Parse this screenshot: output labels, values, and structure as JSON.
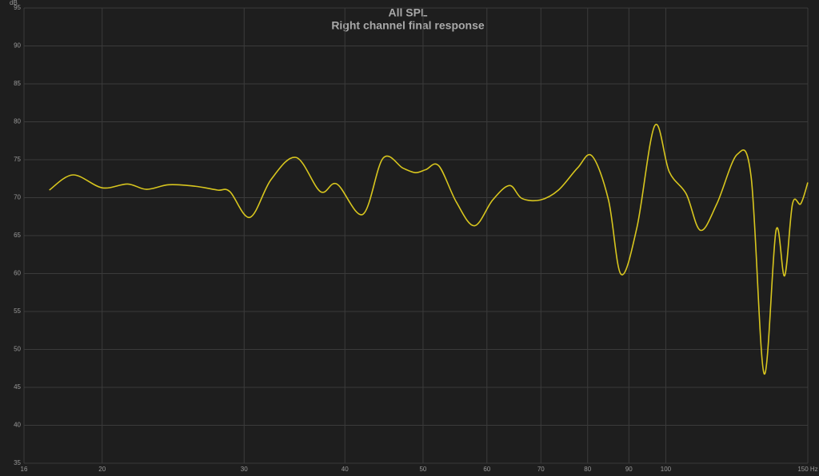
{
  "chart_data": {
    "type": "line",
    "title": "All SPL",
    "subtitle": "Right channel final response",
    "y_label": "dB",
    "x_scale": "log",
    "grid": true,
    "xlim": [
      16,
      150
    ],
    "xticks": [
      16,
      20,
      30,
      40,
      50,
      60,
      70,
      80,
      90,
      100,
      {
        "value": 150,
        "label": "150 Hz"
      }
    ],
    "ylim": [
      35,
      95
    ],
    "yticks": [
      35,
      40,
      45,
      50,
      55,
      60,
      65,
      70,
      75,
      80,
      85,
      90,
      95
    ],
    "series": [
      {
        "name": "Right channel final response",
        "color": "#d8c61e",
        "x": [
          17.2,
          18.4,
          20,
          21.5,
          22.7,
          24.2,
          26.1,
          27.8,
          28.8,
          30.5,
          32.4,
          34.8,
          37.3,
          39.1,
          42.1,
          44.6,
          47.2,
          48.9,
          50.4,
          52.3,
          55.0,
          57.9,
          61.0,
          64.0,
          66.3,
          69.9,
          73.6,
          77.7,
          81.0,
          84.9,
          88.0,
          92.1,
          96.9,
          101.0,
          106.0,
          110.4,
          115.7,
          122.6,
          127.6,
          132.4,
          137.0,
          140.4,
          143.6,
          147.0,
          150.0
        ],
        "values": [
          71.0,
          73.0,
          71.3,
          71.8,
          71.1,
          71.7,
          71.5,
          71.0,
          70.8,
          67.4,
          72.4,
          75.3,
          70.8,
          71.8,
          67.8,
          75.2,
          73.9,
          73.3,
          73.7,
          74.2,
          69.4,
          66.3,
          69.7,
          71.6,
          69.9,
          69.7,
          71.0,
          73.9,
          75.5,
          69.7,
          59.9,
          66.1,
          79.5,
          73.4,
          70.5,
          65.7,
          69.2,
          75.7,
          72.7,
          46.8,
          65.7,
          59.7,
          69.2,
          69.2,
          72.0
        ]
      }
    ]
  }
}
